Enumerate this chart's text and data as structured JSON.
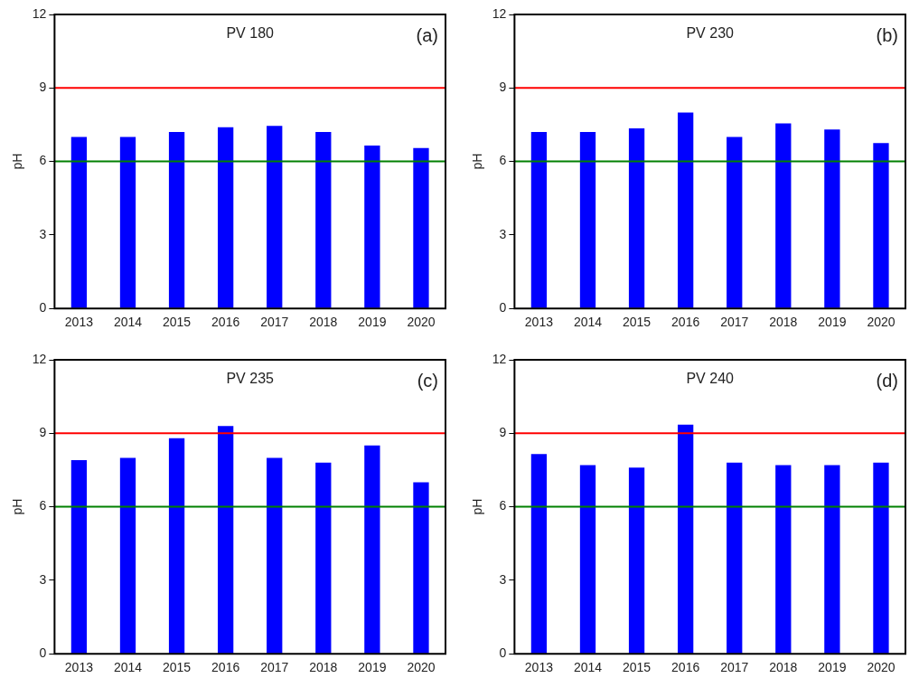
{
  "chart_data": [
    {
      "type": "bar",
      "title": "PV 180",
      "annotations": [
        "(a)"
      ],
      "ylabel": "pH",
      "categories": [
        "2013",
        "2014",
        "2015",
        "2016",
        "2017",
        "2018",
        "2019",
        "2020"
      ],
      "values": [
        7.0,
        7.0,
        7.2,
        7.4,
        7.45,
        7.2,
        6.65,
        6.55
      ],
      "color": "#0000ff",
      "ylim": [
        0,
        12
      ],
      "yticks": [
        0,
        3,
        6,
        9,
        12
      ],
      "grid": false,
      "legend": false,
      "ref_lines": [
        {
          "axis": "y",
          "value": 9,
          "color": "#ff0000"
        },
        {
          "axis": "y",
          "value": 6,
          "color": "#008000"
        }
      ]
    },
    {
      "type": "bar",
      "title": "PV 230",
      "annotations": [
        "(b)"
      ],
      "ylabel": "pH",
      "categories": [
        "2013",
        "2014",
        "2015",
        "2016",
        "2017",
        "2018",
        "2019",
        "2020"
      ],
      "values": [
        7.2,
        7.2,
        7.35,
        8.0,
        7.0,
        7.55,
        7.3,
        6.75
      ],
      "color": "#0000ff",
      "ylim": [
        0,
        12
      ],
      "yticks": [
        0,
        3,
        6,
        9,
        12
      ],
      "grid": false,
      "legend": false,
      "ref_lines": [
        {
          "axis": "y",
          "value": 9,
          "color": "#ff0000"
        },
        {
          "axis": "y",
          "value": 6,
          "color": "#008000"
        }
      ]
    },
    {
      "type": "bar",
      "title": "PV 235",
      "annotations": [
        "(c)"
      ],
      "ylabel": "pH",
      "categories": [
        "2013",
        "2014",
        "2015",
        "2016",
        "2017",
        "2018",
        "2019",
        "2020"
      ],
      "values": [
        7.9,
        8.0,
        8.8,
        9.3,
        8.0,
        7.8,
        8.5,
        7.0
      ],
      "color": "#0000ff",
      "ylim": [
        0,
        12
      ],
      "yticks": [
        0,
        3,
        6,
        9,
        12
      ],
      "grid": false,
      "legend": false,
      "ref_lines": [
        {
          "axis": "y",
          "value": 9,
          "color": "#ff0000"
        },
        {
          "axis": "y",
          "value": 6,
          "color": "#008000"
        }
      ]
    },
    {
      "type": "bar",
      "title": "PV 240",
      "annotations": [
        "(d)"
      ],
      "ylabel": "pH",
      "categories": [
        "2013",
        "2014",
        "2015",
        "2016",
        "2017",
        "2018",
        "2019",
        "2020"
      ],
      "values": [
        8.15,
        7.7,
        7.6,
        9.35,
        7.8,
        7.7,
        7.7,
        7.8
      ],
      "color": "#0000ff",
      "ylim": [
        0,
        12
      ],
      "yticks": [
        0,
        3,
        6,
        9,
        12
      ],
      "grid": false,
      "legend": false,
      "ref_lines": [
        {
          "axis": "y",
          "value": 9,
          "color": "#ff0000"
        },
        {
          "axis": "y",
          "value": 6,
          "color": "#008000"
        }
      ]
    }
  ]
}
